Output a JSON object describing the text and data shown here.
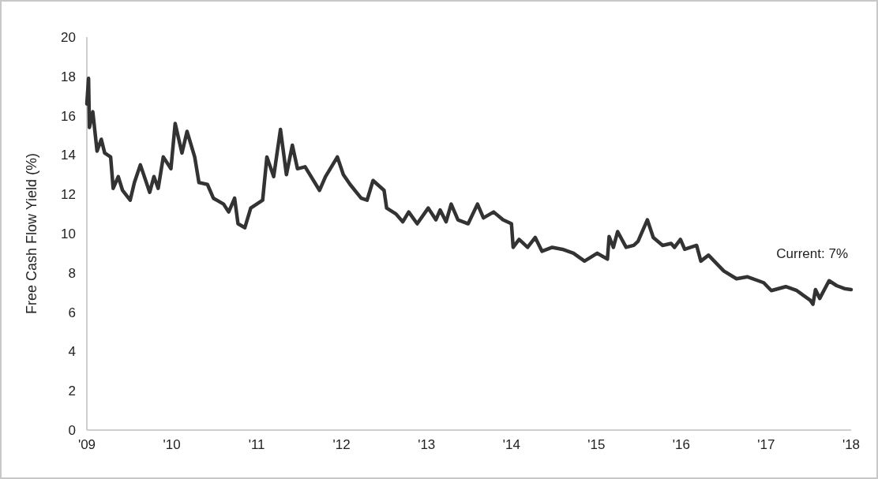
{
  "chart_data": {
    "type": "line",
    "ylabel": "Free Cash Flow Yield (%)",
    "annotations": [
      "Current: 7%"
    ],
    "xlim": [
      2009,
      2018
    ],
    "xticks": [
      {
        "value": 2009,
        "label": "'09"
      },
      {
        "value": 2010,
        "label": "'10"
      },
      {
        "value": 2011,
        "label": "'11"
      },
      {
        "value": 2012,
        "label": "'12"
      },
      {
        "value": 2013,
        "label": "'13"
      },
      {
        "value": 2014,
        "label": "'14"
      },
      {
        "value": 2015,
        "label": "'15"
      },
      {
        "value": 2016,
        "label": "'16"
      },
      {
        "value": 2017,
        "label": "'17"
      },
      {
        "value": 2018,
        "label": "'18"
      }
    ],
    "ylim": [
      0,
      20
    ],
    "yticks": [
      0,
      2,
      4,
      6,
      8,
      10,
      12,
      14,
      16,
      18,
      20
    ],
    "grid": false,
    "series": [
      {
        "color": "#333333",
        "line_style": "solid",
        "x": [
          2009.0,
          2009.02,
          2009.03,
          2009.07,
          2009.12,
          2009.17,
          2009.21,
          2009.28,
          2009.31,
          2009.37,
          2009.42,
          2009.51,
          2009.56,
          2009.63,
          2009.74,
          2009.79,
          2009.84,
          2009.9,
          2009.99,
          2010.04,
          2010.12,
          2010.18,
          2010.27,
          2010.32,
          2010.42,
          2010.49,
          2010.61,
          2010.67,
          2010.74,
          2010.78,
          2010.86,
          2010.93,
          2011.07,
          2011.12,
          2011.2,
          2011.28,
          2011.35,
          2011.42,
          2011.48,
          2011.57,
          2011.74,
          2011.81,
          2011.95,
          2012.02,
          2012.1,
          2012.23,
          2012.3,
          2012.37,
          2012.5,
          2012.53,
          2012.64,
          2012.72,
          2012.79,
          2012.89,
          2013.02,
          2013.11,
          2013.16,
          2013.23,
          2013.29,
          2013.37,
          2013.49,
          2013.6,
          2013.67,
          2013.79,
          2013.9,
          2014.0,
          2014.02,
          2014.09,
          2014.19,
          2014.28,
          2014.36,
          2014.48,
          2014.6,
          2014.73,
          2014.86,
          2015.01,
          2015.13,
          2015.15,
          2015.2,
          2015.25,
          2015.35,
          2015.44,
          2015.49,
          2015.6,
          2015.67,
          2015.78,
          2015.88,
          2015.92,
          2015.99,
          2016.04,
          2016.18,
          2016.23,
          2016.32,
          2016.5,
          2016.65,
          2016.78,
          2016.97,
          2017.06,
          2017.23,
          2017.36,
          2017.52,
          2017.55,
          2017.58,
          2017.63,
          2017.74,
          2017.83,
          2017.92,
          2018.0
        ],
        "values": [
          16.6,
          17.9,
          15.4,
          16.2,
          14.2,
          14.8,
          14.1,
          13.9,
          12.3,
          12.9,
          12.2,
          11.7,
          12.6,
          13.5,
          12.1,
          12.9,
          12.3,
          13.9,
          13.3,
          15.6,
          14.1,
          15.2,
          13.9,
          12.6,
          12.5,
          11.8,
          11.5,
          11.1,
          11.8,
          10.5,
          10.3,
          11.3,
          11.7,
          13.9,
          12.9,
          15.3,
          13.0,
          14.5,
          13.3,
          13.4,
          12.2,
          12.9,
          13.9,
          13.0,
          12.5,
          11.8,
          11.7,
          12.7,
          12.2,
          11.3,
          11.0,
          10.6,
          11.1,
          10.5,
          11.3,
          10.7,
          11.2,
          10.6,
          11.5,
          10.7,
          10.5,
          11.5,
          10.8,
          11.1,
          10.7,
          10.5,
          9.3,
          9.7,
          9.3,
          9.8,
          9.1,
          9.3,
          9.2,
          9.0,
          8.6,
          9.0,
          8.7,
          9.85,
          9.3,
          10.1,
          9.3,
          9.4,
          9.6,
          10.7,
          9.8,
          9.4,
          9.5,
          9.3,
          9.7,
          9.2,
          9.4,
          8.6,
          8.9,
          8.1,
          7.7,
          7.8,
          7.5,
          7.1,
          7.3,
          7.1,
          6.6,
          6.4,
          7.15,
          6.7,
          7.6,
          7.35,
          7.2,
          7.15
        ]
      }
    ]
  }
}
